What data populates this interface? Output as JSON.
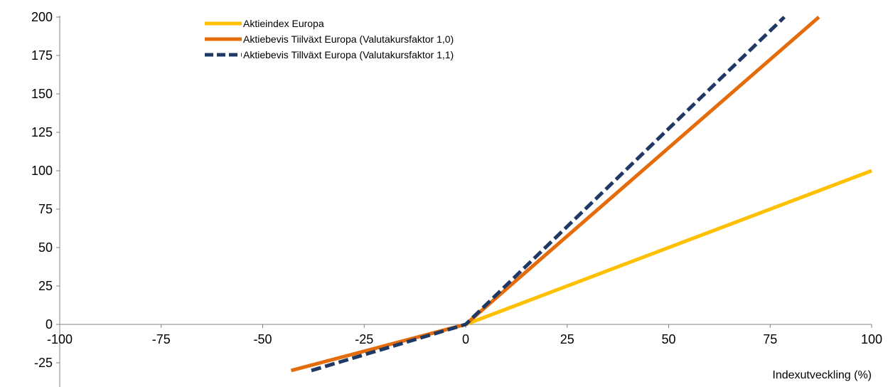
{
  "chart_data": {
    "type": "line",
    "title": "",
    "xlabel": "Indexutveckling (%)",
    "ylabel": "",
    "xlim": [
      -100,
      100
    ],
    "ylim": [
      -25,
      200
    ],
    "x_ticks": [
      "-100",
      "-75",
      "-50",
      "-25",
      "0",
      "25",
      "50",
      "75",
      "100"
    ],
    "y_ticks": [
      "200",
      "175",
      "150",
      "125",
      "100",
      "75",
      "50",
      "25",
      "0",
      "-25"
    ],
    "grid": false,
    "legend_position": "top-center",
    "series": [
      {
        "name": "Aktieindex Europa",
        "color": "#FFC000",
        "style": "solid",
        "x": [
          0,
          100
        ],
        "y": [
          0,
          100
        ]
      },
      {
        "name": "Aktiebevis Tiilväxt Europa (Valutakursfaktor 1,0)",
        "color": "#E46C0A",
        "style": "solid",
        "x": [
          -43,
          0,
          87
        ],
        "y": [
          -30,
          0,
          200
        ]
      },
      {
        "name": "Aktiebevis Tillväxt Europa (Valutakursfaktor 1,1)",
        "color": "#1F3864",
        "style": "dashed",
        "x": [
          -38,
          0,
          78.5
        ],
        "y": [
          -30,
          0,
          200
        ]
      }
    ]
  }
}
